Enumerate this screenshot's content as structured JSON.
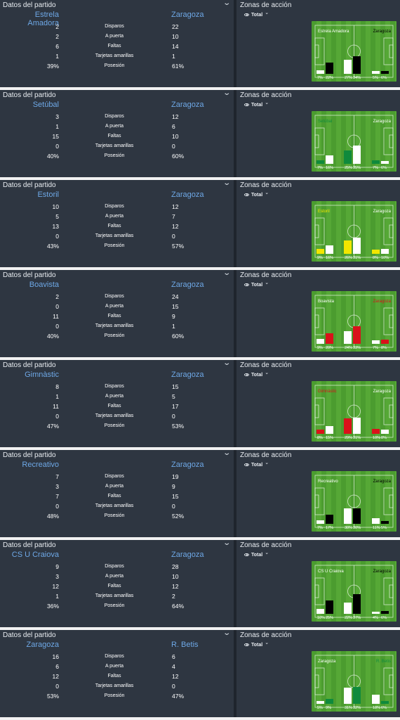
{
  "section_title": "Datos del partido",
  "zones_title": "Zonas de acción",
  "filter_label": "Total",
  "stat_labels": [
    "Disparos",
    "A puerta",
    "Faltas",
    "Tarjetas amarillas",
    "Posesión"
  ],
  "matches": [
    {
      "home": "Estrela Amadora",
      "away": "Zaragoza",
      "stats": [
        [
          "2",
          "22"
        ],
        [
          "2",
          "10"
        ],
        [
          "6",
          "14"
        ],
        [
          "1",
          "1"
        ],
        [
          "39%",
          "61%"
        ]
      ],
      "zones": {
        "home_label": "Estrela Amadora",
        "away_label": "Zaragoza",
        "home_color": "#ffffff",
        "away_color": "#000000",
        "home_label_color": "#ffffff",
        "away_label_color": "#000000",
        "home_pct": [
          7,
          27,
          5
        ],
        "away_pct": [
          22,
          34,
          6
        ],
        "home_pct_text": [
          "7%",
          "27%",
          "5%"
        ],
        "away_pct_text": [
          "22%",
          "34%",
          "6%"
        ]
      }
    },
    {
      "home": "Setúbal",
      "away": "Zaragoza",
      "stats": [
        [
          "3",
          "12"
        ],
        [
          "1",
          "6"
        ],
        [
          "15",
          "10"
        ],
        [
          "0",
          "0"
        ],
        [
          "40%",
          "60%"
        ]
      ],
      "zones": {
        "home_label": "Setúbal",
        "away_label": "Zaragoza",
        "home_color": "#0f8a3c",
        "away_color": "#ffffff",
        "home_label_color": "#0f8a3c",
        "away_label_color": "#ffffff",
        "home_pct": [
          7,
          25,
          7
        ],
        "away_pct": [
          16,
          35,
          6
        ],
        "home_pct_text": [
          "7%",
          "25%",
          "7%"
        ],
        "away_pct_text": [
          "16%",
          "35%",
          "6%"
        ]
      }
    },
    {
      "home": "Estoril",
      "away": "Zaragoza",
      "stats": [
        [
          "10",
          "12"
        ],
        [
          "5",
          "7"
        ],
        [
          "13",
          "12"
        ],
        [
          "0",
          "0"
        ],
        [
          "43%",
          "57%"
        ]
      ],
      "zones": {
        "home_label": "Estoril",
        "away_label": "Zaragoza",
        "home_color": "#f2e600",
        "away_color": "#ffffff",
        "home_label_color": "#f2e600",
        "away_label_color": "#ffffff",
        "home_pct": [
          9,
          26,
          8
        ],
        "away_pct": [
          16,
          31,
          10
        ],
        "home_pct_text": [
          "9%",
          "26%",
          "8%"
        ],
        "away_pct_text": [
          "16%",
          "31%",
          "10%"
        ]
      }
    },
    {
      "home": "Boavista",
      "away": "Zaragoza",
      "stats": [
        [
          "2",
          "24"
        ],
        [
          "0",
          "15"
        ],
        [
          "11",
          "9"
        ],
        [
          "0",
          "1"
        ],
        [
          "40%",
          "60%"
        ]
      ],
      "zones": {
        "home_label": "Boavista",
        "away_label": "Zaragoza",
        "home_color": "#ffffff",
        "away_color": "#d9121a",
        "home_label_color": "#ffffff",
        "away_label_color": "#d9121a",
        "home_pct": [
          9,
          24,
          7
        ],
        "away_pct": [
          20,
          33,
          8
        ],
        "home_pct_text": [
          "9%",
          "24%",
          "7%"
        ],
        "away_pct_text": [
          "20%",
          "33%",
          "8%"
        ]
      }
    },
    {
      "home": "Gimnàstic",
      "away": "Zaragoza",
      "stats": [
        [
          "8",
          "15"
        ],
        [
          "1",
          "5"
        ],
        [
          "11",
          "17"
        ],
        [
          "0",
          "0"
        ],
        [
          "47%",
          "53%"
        ]
      ],
      "zones": {
        "home_label": "Gimnàstic",
        "away_label": "Zaragoza",
        "home_color": "#d9121a",
        "away_color": "#ffffff",
        "home_label_color": "#d9121a",
        "away_label_color": "#ffffff",
        "home_pct": [
          8,
          29,
          10
        ],
        "away_pct": [
          15,
          31,
          8
        ],
        "home_pct_text": [
          "8%",
          "29%",
          "10%"
        ],
        "away_pct_text": [
          "15%",
          "31%",
          "8%"
        ]
      }
    },
    {
      "home": "Recreativo",
      "away": "Zaragoza",
      "stats": [
        [
          "7",
          "19"
        ],
        [
          "3",
          "9"
        ],
        [
          "7",
          "15"
        ],
        [
          "0",
          "0"
        ],
        [
          "48%",
          "52%"
        ]
      ],
      "zones": {
        "home_label": "Recreativo",
        "away_label": "Zaragoza",
        "home_color": "#ffffff",
        "away_color": "#000000",
        "home_label_color": "#ffffff",
        "away_label_color": "#000000",
        "home_pct": [
          7,
          30,
          11
        ],
        "away_pct": [
          17,
          30,
          5
        ],
        "home_pct_text": [
          "7%",
          "30%",
          "11%"
        ],
        "away_pct_text": [
          "17%",
          "30%",
          "5%"
        ]
      }
    },
    {
      "home": "CS U Craiova",
      "away": "Zaragoza",
      "stats": [
        [
          "9",
          "28"
        ],
        [
          "3",
          "10"
        ],
        [
          "12",
          "12"
        ],
        [
          "1",
          "2"
        ],
        [
          "36%",
          "64%"
        ]
      ],
      "zones": {
        "home_label": "CS U Craiova",
        "away_label": "Zaragoza",
        "home_color": "#ffffff",
        "away_color": "#000000",
        "home_label_color": "#ffffff",
        "away_label_color": "#000000",
        "home_pct": [
          10,
          22,
          4
        ],
        "away_pct": [
          25,
          37,
          6
        ],
        "home_pct_text": [
          "10%",
          "22%",
          "4%"
        ],
        "away_pct_text": [
          "25%",
          "37%",
          "6%"
        ]
      }
    },
    {
      "home": "Zaragoza",
      "away": "R. Betis",
      "stats": [
        [
          "16",
          "6"
        ],
        [
          "6",
          "4"
        ],
        [
          "12",
          "12"
        ],
        [
          "0",
          "0"
        ],
        [
          "53%",
          "47%"
        ]
      ],
      "zones": {
        "home_label": "Zaragoza",
        "away_label": "R. Betis",
        "home_color": "#ffffff",
        "away_color": "#0f8a3c",
        "home_label_color": "#ffffff",
        "away_label_color": "#0f8a3c",
        "home_pct": [
          5,
          31,
          18
        ],
        "away_pct": [
          9,
          32,
          6
        ],
        "home_pct_text": [
          "5%",
          "31%",
          "18%"
        ],
        "away_pct_text": [
          "9%",
          "32%",
          "6%"
        ]
      }
    }
  ]
}
